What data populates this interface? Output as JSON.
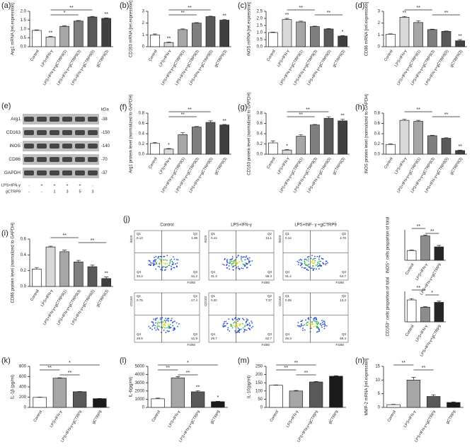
{
  "chart_data": [
    {
      "type": "bar",
      "label": "(a)",
      "ylabel": "Arg1 mRNA [rel.expression]",
      "categories": [
        "Control",
        "LPS+IFN-γ",
        "LPS+IFN-γ+gCTRP9(1)",
        "LPS+IFN-γ+gCTRP9(3)",
        "LPS+IFN-γ+gCTRP9(5)",
        "gCTRP9(3)"
      ],
      "values": [
        0.92,
        0.55,
        1.15,
        1.45,
        1.68,
        1.6
      ],
      "errors": [
        0.03,
        0.03,
        0.04,
        0.03,
        0.03,
        0.03
      ],
      "colors": [
        "#ffffff",
        "#d9d9d9",
        "#a6a6a6",
        "#7f7f7f",
        "#595959",
        "#404040"
      ],
      "ylim": [
        0,
        2
      ],
      "yticks": [
        {
          "value": 0,
          "label": "0.0"
        },
        0.5,
        {
          "value": 1,
          "label": "1.0"
        },
        1.5,
        {
          "value": 2,
          "label": "2.0"
        }
      ],
      "annotations": [
        {
          "text": "**",
          "category": 1
        },
        {
          "text": "**",
          "category": 5
        }
      ],
      "brackets": [
        {
          "text": "**",
          "from": 1,
          "to": 4
        },
        {
          "text": "*",
          "from": 1,
          "to": 3
        }
      ]
    },
    {
      "type": "bar",
      "label": "(b)",
      "ylabel": "CD163 mRNA [rel.expression]",
      "categories": [
        "Control",
        "LPS+IFN-γ",
        "LPS+IFN-γ+gCTRP9(1)",
        "LPS+IFN-γ+gCTRP9(3)",
        "LPS+IFN-γ+gCTRP9(5)",
        "gCTRP9(3)"
      ],
      "values": [
        1.0,
        0.35,
        1.45,
        2.0,
        2.55,
        2.25
      ],
      "errors": [
        0.08,
        0.04,
        0.06,
        0.04,
        0.04,
        0.05
      ],
      "colors": [
        "#ffffff",
        "#d9d9d9",
        "#a6a6a6",
        "#7f7f7f",
        "#595959",
        "#404040"
      ],
      "ylim": [
        0,
        3
      ],
      "yticks": [
        0,
        1,
        2,
        3
      ],
      "annotations": [
        {
          "text": "**",
          "category": 1
        },
        {
          "text": "**",
          "category": 5
        }
      ],
      "brackets": [
        {
          "text": "**",
          "from": 1,
          "to": 4
        },
        {
          "text": "**",
          "from": 1,
          "to": 3
        }
      ]
    },
    {
      "type": "bar",
      "label": "(c)",
      "ylabel": "iNOS mRNA [rel.expression]",
      "categories": [
        "Control",
        "LPS+IFN-γ",
        "LPS+IFN-γ+gCTRP9(1)",
        "LPS+IFN-γ+gCTRP9(3)",
        "LPS+IFN-γ+gCTRP9(5)",
        "gCTRP9(3)"
      ],
      "values": [
        1.0,
        1.92,
        1.75,
        1.42,
        1.25,
        0.75
      ],
      "errors": [
        0.03,
        0.08,
        0.06,
        0.03,
        0.03,
        0.04
      ],
      "colors": [
        "#ffffff",
        "#d9d9d9",
        "#a6a6a6",
        "#7f7f7f",
        "#595959",
        "#404040"
      ],
      "ylim": [
        0,
        2.5
      ],
      "yticks": [
        {
          "value": 0,
          "label": "0.0"
        },
        0.5,
        {
          "value": 1,
          "label": "1.0"
        },
        1.5,
        {
          "value": 2,
          "label": "2.0"
        },
        2.5
      ],
      "annotations": [
        {
          "text": "**",
          "category": 1
        },
        {
          "text": "*",
          "category": 5
        }
      ],
      "brackets": [
        {
          "text": "**",
          "from": 1,
          "to": 3
        },
        {
          "text": "**",
          "from": 3,
          "to": 5
        }
      ]
    },
    {
      "type": "bar",
      "label": "(d)",
      "ylabel": "CD86 mRNA [rel.expression]",
      "categories": [
        "Control",
        "LPS+IFN-γ",
        "LPS+IFN-γ+gCTRP9(1)",
        "LPS+IFN-γ+gCTRP9(3)",
        "LPS+IFN-γ+gCTRP9(5)",
        "gCTRP9(3)"
      ],
      "values": [
        1.05,
        2.5,
        2.05,
        1.45,
        1.3,
        0.5
      ],
      "errors": [
        0.04,
        0.06,
        0.15,
        0.04,
        0.03,
        0.1
      ],
      "colors": [
        "#ffffff",
        "#d9d9d9",
        "#a6a6a6",
        "#7f7f7f",
        "#595959",
        "#404040"
      ],
      "ylim": [
        0,
        3
      ],
      "yticks": [
        0,
        1,
        2,
        3
      ],
      "annotations": [
        {
          "text": "**",
          "category": 1
        },
        {
          "text": "**",
          "category": 5
        }
      ],
      "brackets": [
        {
          "text": "**",
          "from": 1,
          "to": 3
        },
        {
          "text": "**",
          "from": 3,
          "to": 5
        }
      ]
    },
    {
      "type": "blot",
      "label": "(e)",
      "unit": "kDa",
      "rows": [
        {
          "name": "Arg1",
          "kda": "-38"
        },
        {
          "name": "CD163",
          "kda": "-150"
        },
        {
          "name": "iNOS",
          "kda": "-140"
        },
        {
          "name": "CD86",
          "kda": "-70"
        },
        {
          "name": "GAPDH",
          "kda": "-37"
        }
      ],
      "treatments": [
        {
          "name": "LPS+IFN-γ",
          "marks": [
            "-",
            "+",
            "+",
            "+",
            "+",
            "-"
          ]
        },
        {
          "name": "gCTRP9",
          "marks": [
            "-",
            "-",
            "1",
            "3",
            "5",
            "3"
          ]
        }
      ]
    },
    {
      "type": "bar",
      "label": "(f)",
      "ylabel": "Arg1 protein level (normalized to GAPDH)",
      "categories": [
        "Control",
        "LPS+IFN-γ",
        "LPS+IFN-γ+gCTRP9(1)",
        "LPS+IFN-γ+gCTRP9(3)",
        "LPS+IFN-γ+gCTRP9(5)",
        "gCTRP9(3)"
      ],
      "values": [
        0.21,
        0.1,
        0.38,
        0.53,
        0.62,
        0.57
      ],
      "errors": [
        0.02,
        0.01,
        0.04,
        0.01,
        0.03,
        0.01
      ],
      "colors": [
        "#ffffff",
        "#d9d9d9",
        "#a6a6a6",
        "#7f7f7f",
        "#595959",
        "#404040"
      ],
      "ylim": [
        0,
        0.8
      ],
      "yticks": [
        {
          "value": 0,
          "label": "0.0"
        },
        0.2,
        0.4,
        0.6,
        0.8
      ],
      "annotations": [
        {
          "text": "*",
          "category": 1
        },
        {
          "text": "**",
          "category": 5
        }
      ],
      "brackets": [
        {
          "text": "**",
          "from": 1,
          "to": 4
        },
        {
          "text": "**",
          "from": 1,
          "to": 3
        }
      ]
    },
    {
      "type": "bar",
      "label": "(g)",
      "ylabel": "CD163 protein level (normalized to GAPDH)",
      "categories": [
        "Control",
        "LPS+IFN-γ",
        "LPS+IFN-γ+gCTRP9(1)",
        "LPS+IFN-γ+gCTRP9(3)",
        "LPS+IFN-γ+gCTRP9(5)",
        "gCTRP9(3)"
      ],
      "values": [
        0.22,
        0.08,
        0.35,
        0.57,
        0.7,
        0.65
      ],
      "errors": [
        0.04,
        0.01,
        0.03,
        0.01,
        0.03,
        0.03
      ],
      "colors": [
        "#ffffff",
        "#d9d9d9",
        "#a6a6a6",
        "#7f7f7f",
        "#595959",
        "#404040"
      ],
      "ylim": [
        0,
        0.8
      ],
      "yticks": [
        {
          "value": 0,
          "label": "0.0"
        },
        0.2,
        0.4,
        0.6,
        0.8
      ],
      "annotations": [
        {
          "text": "*",
          "category": 1
        },
        {
          "text": "**",
          "category": 5
        }
      ],
      "brackets": [
        {
          "text": "**",
          "from": 1,
          "to": 4
        },
        {
          "text": "**",
          "from": 1,
          "to": 3
        }
      ]
    },
    {
      "type": "bar",
      "label": "(h)",
      "ylabel": "iNOS protein level (normalized to GAPDH)",
      "categories": [
        "Control",
        "LPS+IFN-γ",
        "LPS+IFN-γ+gCTRP9(1)",
        "LPS+IFN-γ+gCTRP9(3)",
        "LPS+IFN-γ+gCTRP9(5)",
        "gCTRP9(3)"
      ],
      "values": [
        0.19,
        0.66,
        0.64,
        0.36,
        0.31,
        0.07
      ],
      "errors": [
        0.01,
        0.02,
        0.02,
        0.01,
        0.01,
        0.01
      ],
      "colors": [
        "#ffffff",
        "#d9d9d9",
        "#a6a6a6",
        "#7f7f7f",
        "#595959",
        "#404040"
      ],
      "ylim": [
        0,
        0.8
      ],
      "yticks": [
        {
          "value": 0,
          "label": "0.0"
        },
        0.2,
        0.4,
        0.6,
        0.8
      ],
      "annotations": [
        {
          "text": "**",
          "category": 5
        }
      ],
      "brackets": [
        {
          "text": "**",
          "from": 1,
          "to": 3
        },
        {
          "text": "**",
          "from": 3,
          "to": 5
        }
      ]
    },
    {
      "type": "bar",
      "label": "(i)",
      "ylabel": "CD86 protein level (normalized to GAPDH)",
      "categories": [
        "Control",
        "LPS+IFN-γ",
        "LPS+IFN-γ+gCTRP9(1)",
        "LPS+IFN-γ+gCTRP9(3)",
        "LPS+IFN-γ+gCTRP9(5)",
        "gCTRP9(3)"
      ],
      "values": [
        0.22,
        0.5,
        0.44,
        0.31,
        0.25,
        0.1
      ],
      "errors": [
        0.02,
        0.01,
        0.02,
        0.02,
        0.02,
        0.02
      ],
      "colors": [
        "#ffffff",
        "#d9d9d9",
        "#a6a6a6",
        "#7f7f7f",
        "#595959",
        "#404040"
      ],
      "ylim": [
        0,
        0.6
      ],
      "yticks": [
        {
          "value": 0,
          "label": "0.0"
        },
        0.2,
        0.4,
        0.6
      ],
      "annotations": [
        {
          "text": "**",
          "category": 5
        }
      ],
      "brackets": [
        {
          "text": "**",
          "from": 1,
          "to": 3
        },
        {
          "text": "**",
          "from": 3,
          "to": 5
        }
      ]
    },
    {
      "type": "flow",
      "label": "(j)",
      "columns": [
        "Control",
        "LPS+IFN-γ",
        "LPS+INF- γ +gCTRP9"
      ],
      "markers": [
        "iNOS",
        "CD163"
      ],
      "xlabel": "F4/80",
      "quadrant_names": [
        "Q1",
        "Q2",
        "Q3",
        "Q4"
      ],
      "plots": [
        [
          {
            "values": [
              0.13,
              4.38,
              61.2,
              34.3
            ]
          },
          {
            "values": [
              0.12,
              12.1,
              56.3,
              31.3
            ]
          },
          {
            "values": [
              0.14,
              4.75,
              64.7,
              31.4
            ]
          }
        ],
        [
          {
            "values": [
              0.75,
              17.4,
              51.9,
              29.9
            ]
          },
          {
            "values": [
              0.2,
              7.37,
              62.7,
              29.7
            ],
            "value_labels": [
              "0.20",
              "7.37",
              "62.7",
              "29.7"
            ]
          },
          {
            "values": [
              0.09,
              13.3,
              60.4,
              26.3
            ]
          }
        ]
      ]
    },
    {
      "type": "bar",
      "ylabel": "iNOS⁺ cells proportion of total",
      "categories": [
        "Control",
        "LPS+IFN-γ",
        "LPS+IFN-γ+gCTRP9"
      ],
      "values": [
        8,
        20,
        11
      ],
      "errors": [
        0.5,
        0.8,
        1.2
      ],
      "colors": [
        "#ffffff",
        "#8c8c8c",
        "#262626"
      ],
      "ylim": [
        0,
        25
      ],
      "annotations": [],
      "brackets": [
        {
          "text": "**",
          "from": 0,
          "to": 1
        },
        {
          "text": "**",
          "from": 1,
          "to": 2
        }
      ]
    },
    {
      "type": "bar",
      "ylabel": "CD163⁺ cells proportion of total",
      "categories": [
        "Control",
        "LPS+IFN-γ",
        "LPS+IFN-γ+gCTRP9"
      ],
      "values": [
        18,
        12,
        16
      ],
      "errors": [
        1,
        0.6,
        1
      ],
      "colors": [
        "#ffffff",
        "#8c8c8c",
        "#262626"
      ],
      "ylim": [
        0,
        25
      ],
      "annotations": [],
      "brackets": [
        {
          "text": "**",
          "from": 0,
          "to": 1
        },
        {
          "text": "*",
          "from": 1,
          "to": 2
        }
      ]
    },
    {
      "type": "bar",
      "label": "(k)",
      "ylabel": "IL-1β (pg/ml)",
      "categories": [
        "Control",
        "LPS+IFN-γ",
        "LPS+IFN-γ+gCTRP9",
        "gCTRP9"
      ],
      "values": [
        195,
        570,
        305,
        170
      ],
      "errors": [
        5,
        8,
        6,
        4
      ],
      "colors": [
        "#ffffff",
        "#a6a6a6",
        "#595959",
        "#1a1a1a"
      ],
      "ylim": [
        0,
        800
      ],
      "yticks": [
        0,
        200,
        400,
        600,
        800
      ],
      "annotations": [],
      "brackets": [
        {
          "text": "*",
          "from": 0,
          "to": 3
        },
        {
          "text": "**",
          "from": 0,
          "to": 1
        },
        {
          "text": "**",
          "from": 1,
          "to": 2
        }
      ]
    },
    {
      "type": "bar",
      "label": "(l)",
      "ylabel": "IL-6(pg/ml)",
      "categories": [
        "Control",
        "LPS+IFN-γ",
        "LPS+IFN-γ+gCTRP9",
        "gCTRP9"
      ],
      "values": [
        1050,
        3600,
        1900,
        700
      ],
      "errors": [
        80,
        150,
        120,
        50
      ],
      "colors": [
        "#ffffff",
        "#a6a6a6",
        "#595959",
        "#1a1a1a"
      ],
      "ylim": [
        0,
        5000
      ],
      "yticks": [
        0,
        1000,
        2000,
        3000,
        4000,
        5000
      ],
      "annotations": [
        {
          "text": "**",
          "category": 2
        },
        {
          "text": "*",
          "category": 3
        }
      ],
      "brackets": [
        {
          "text": "*",
          "from": 0,
          "to": 3
        },
        {
          "text": "**",
          "from": 0,
          "to": 1
        },
        {
          "text": "**",
          "from": 1,
          "to": 2
        }
      ]
    },
    {
      "type": "bar",
      "label": "(m)",
      "ylabel": "IL-10(pg/ml)",
      "categories": [
        "Control",
        "LPS+IFN-γ",
        "LPS+IFN-γ+gCTRP9",
        "gCTRP9"
      ],
      "values": [
        135,
        100,
        155,
        190
      ],
      "errors": [
        2,
        3,
        3,
        3
      ],
      "colors": [
        "#ffffff",
        "#a6a6a6",
        "#595959",
        "#1a1a1a"
      ],
      "ylim": [
        0,
        250
      ],
      "yticks": [
        0,
        50,
        100,
        150,
        200,
        250
      ],
      "annotations": [],
      "brackets": [
        {
          "text": "**",
          "from": 0,
          "to": 2
        },
        {
          "text": "**",
          "from": 0,
          "to": 1
        },
        {
          "text": "**",
          "from": 1,
          "to": 2
        }
      ]
    },
    {
      "type": "bar",
      "label": "(n)",
      "ylabel": "MMP-2 mRNA [rel.expression]",
      "categories": [
        "Control",
        "LPS+IFN-γ",
        "LPS+IFN-γ+gCTRP9",
        "gCTRP9"
      ],
      "values": [
        1,
        10,
        4,
        1.8
      ],
      "errors": [
        0.1,
        1,
        0.6,
        0.2
      ],
      "colors": [
        "#ffffff",
        "#a6a6a6",
        "#595959",
        "#1a1a1a"
      ],
      "ylim": [
        0,
        15
      ],
      "yticks": [
        0,
        5,
        10,
        15
      ],
      "annotations": [],
      "brackets": [
        {
          "text": "**",
          "from": 0,
          "to": 1
        },
        {
          "text": "**",
          "from": 1,
          "to": 2
        }
      ]
    }
  ]
}
